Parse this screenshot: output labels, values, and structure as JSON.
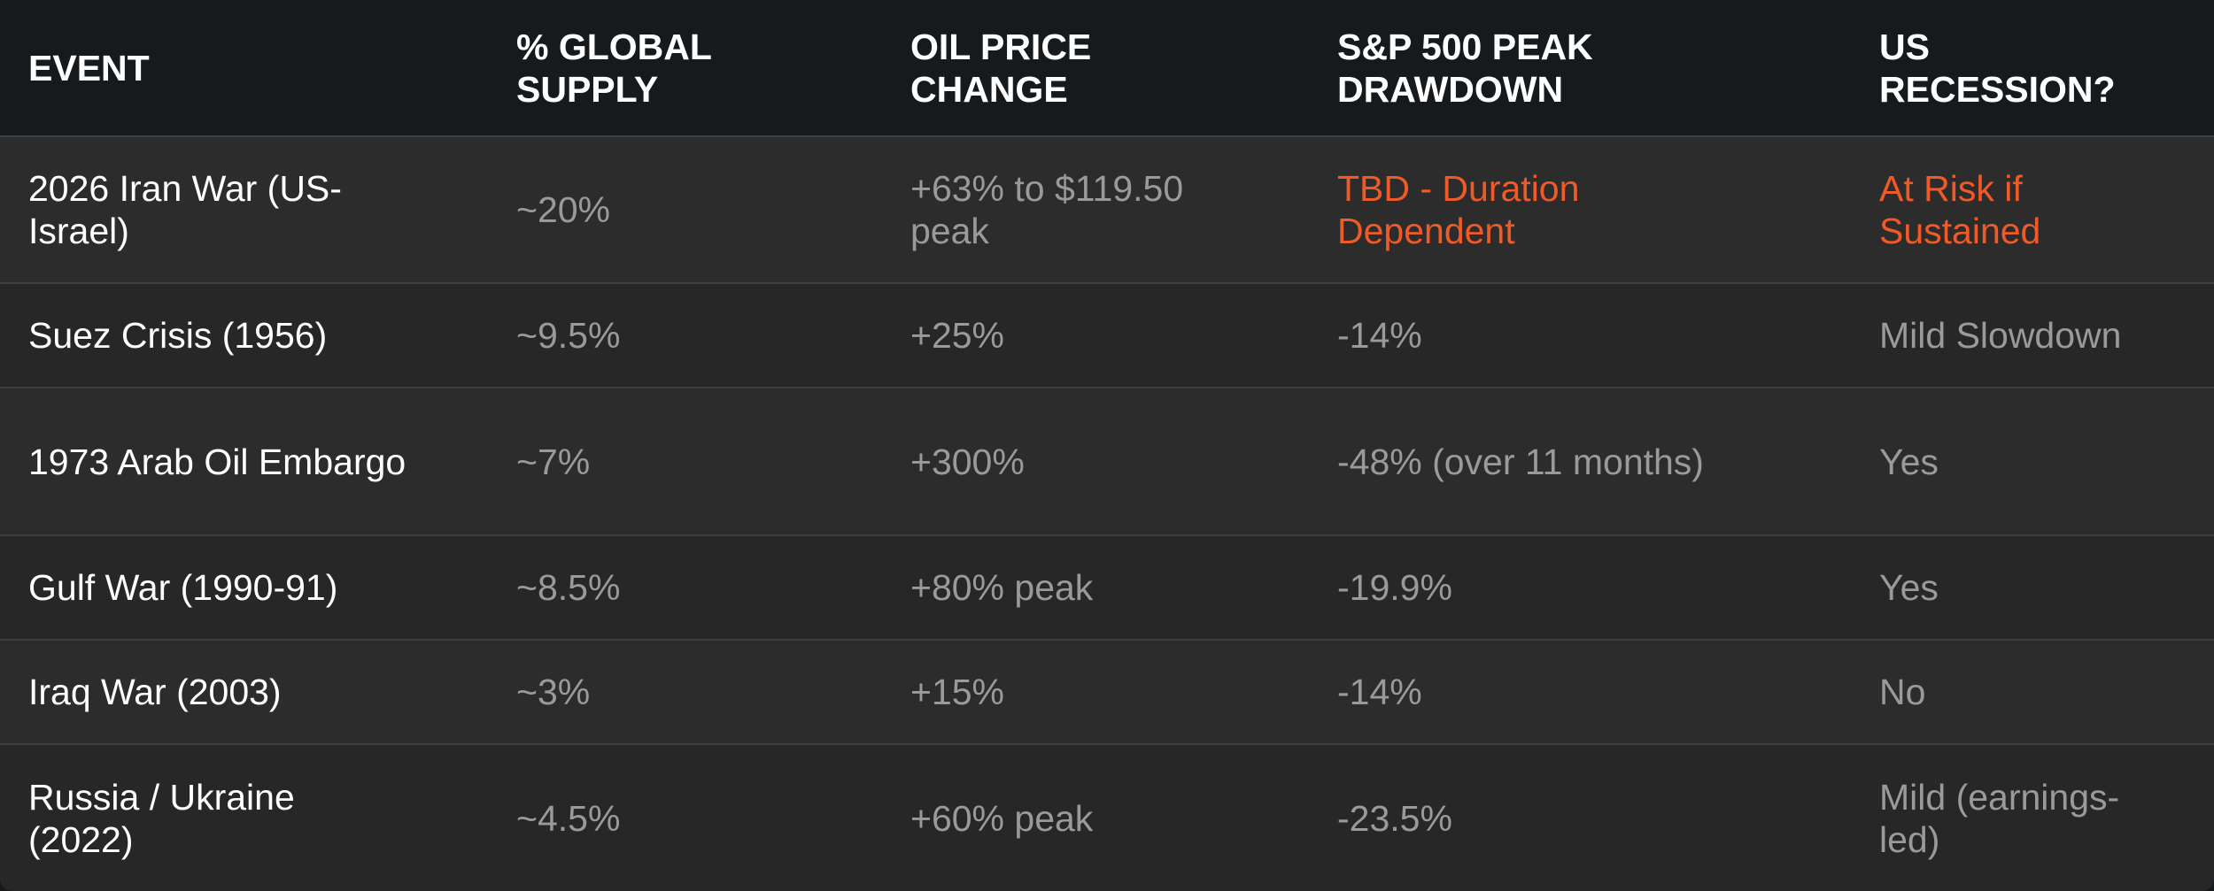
{
  "table": {
    "headers": [
      "EVENT",
      "% GLOBAL SUPPLY",
      "OIL PRICE CHANGE",
      "S&P 500 PEAK DRAWDOWN",
      "US RECESSION?"
    ],
    "rows": [
      [
        "2026 Iran War (US-Israel)",
        "~20%",
        "+63% to $119.50 peak",
        "TBD - Duration Dependent",
        "At Risk if Sustained"
      ],
      [
        "Suez Crisis (1956)",
        "~9.5%",
        "+25%",
        "-14%",
        "Mild Slowdown"
      ],
      [
        "1973 Arab Oil Embargo",
        "~7%",
        "+300%",
        "-48% (over 11 months)",
        "Yes"
      ],
      [
        "Gulf War (1990-91)",
        "~8.5%",
        "+80% peak",
        "-19.9%",
        "Yes"
      ],
      [
        "Iraq War (2003)",
        "~3%",
        "+15%",
        "-14%",
        "No"
      ],
      [
        "Russia / Ukraine (2022)",
        "~4.5%",
        "+60% peak",
        "-23.5%",
        "Mild (earnings-led)"
      ]
    ]
  }
}
